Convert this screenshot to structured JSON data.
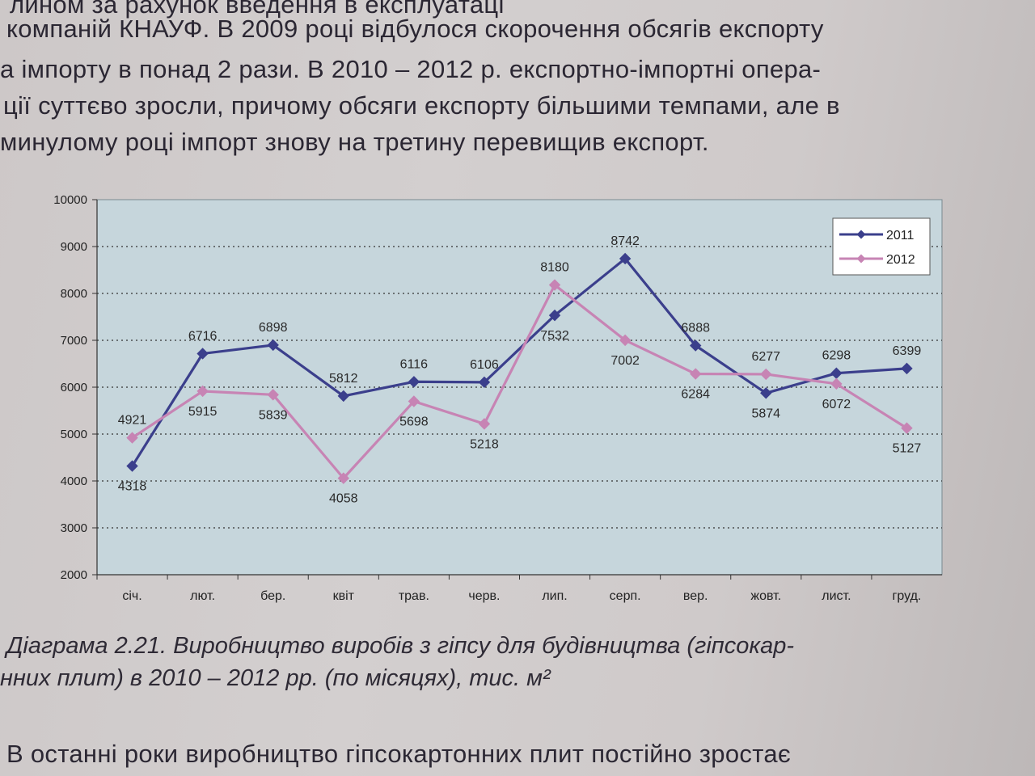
{
  "paragraph_top": [
    "лином за рахунок введення в експлуатаці",
    "компаній КНАУФ. В 2009 році відбулося скорочення обсягів експорту",
    "а імпорту в понад 2 рази. В 2010 – 2012 р. експортно-імпортні опера-",
    "ції суттєво зросли, причому обсяги експорту більшими темпами, але в",
    "минулому році імпорт знову на третину перевищив експорт."
  ],
  "caption": [
    "Діаграма 2.21. Виробництво виробів з гіпсу для будівництва (гіпсокар-",
    "нних плит) в 2010 – 2012 рр. (по місяцях), тис. м²"
  ],
  "paragraph_bottom": [
    "В останні роки виробництво гіпсокартонних плит постійно зростає"
  ],
  "chart_data": {
    "type": "line",
    "categories": [
      "січ.",
      "лют.",
      "бер.",
      "квіт",
      "трав.",
      "черв.",
      "лип.",
      "серп.",
      "вер.",
      "жовт.",
      "лист.",
      "груд."
    ],
    "ylim": [
      2000,
      10000
    ],
    "yticks": [
      2000,
      3000,
      4000,
      5000,
      6000,
      7000,
      8000,
      9000,
      10000
    ],
    "grid": true,
    "legend_position": "top-right",
    "series": [
      {
        "name": "2011",
        "color": "#3b3f8c",
        "values": [
          4318,
          6716,
          6898,
          5812,
          6116,
          6106,
          7532,
          8742,
          6888,
          5874,
          6298,
          6399
        ],
        "labels": [
          "4318",
          "6716",
          "6898",
          "5812",
          "6116",
          "6106",
          "7532",
          "8742",
          "6888",
          "5874",
          "6298",
          "6399"
        ]
      },
      {
        "name": "2012",
        "color": "#c784b4",
        "values": [
          4921,
          5915,
          5839,
          4058,
          5698,
          5218,
          8180,
          7002,
          6284,
          6277,
          6072,
          5127
        ],
        "labels": [
          "4921",
          "5915",
          "5839",
          "4058",
          "5698",
          "5218",
          "8180",
          "7002",
          "6284",
          "6277",
          "6072",
          "5127"
        ]
      }
    ],
    "plot_background": "#c6d6dc"
  }
}
